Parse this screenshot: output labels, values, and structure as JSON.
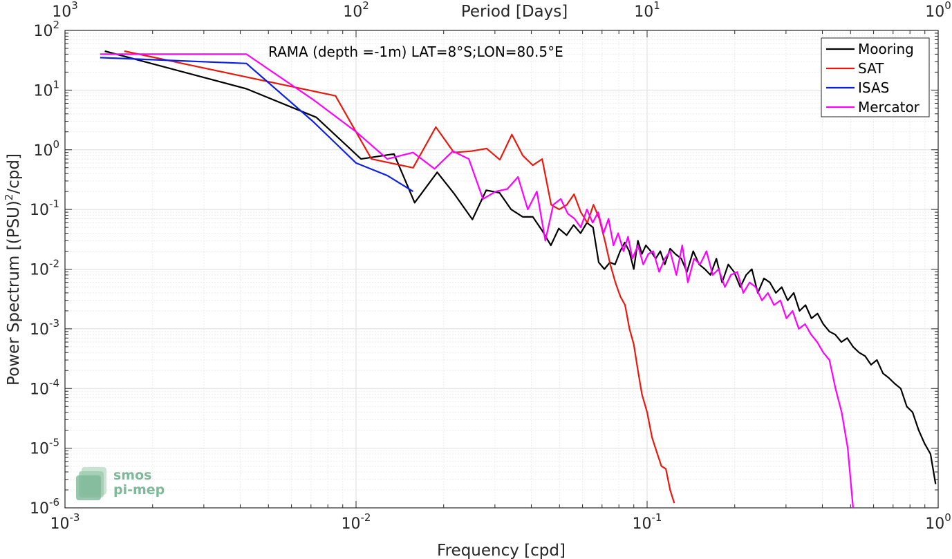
{
  "chart_data": {
    "type": "line",
    "annotation": "RAMA (depth =-1m) LAT=8°S;LON=80.5°E",
    "xlabel": "Frequency [cpd]",
    "ylabel_main": "Power Spectrum [(PSU)",
    "ylabel_sup": "2",
    "ylabel_tail": "/cpd]",
    "top_xlabel": "Period [Days]",
    "xscale": "log",
    "yscale": "log",
    "xlim": [
      0.001,
      1
    ],
    "ylim": [
      1e-06,
      100
    ],
    "grid": true,
    "legend_position": "top-right",
    "x_ticks": [
      {
        "base": "10",
        "exp": "-3"
      },
      {
        "base": "10",
        "exp": "-2"
      },
      {
        "base": "10",
        "exp": "-1"
      },
      {
        "base": "10",
        "exp": "0"
      }
    ],
    "y_ticks": [
      {
        "base": "10",
        "exp": "-6"
      },
      {
        "base": "10",
        "exp": "-5"
      },
      {
        "base": "10",
        "exp": "-4"
      },
      {
        "base": "10",
        "exp": "-3"
      },
      {
        "base": "10",
        "exp": "-2"
      },
      {
        "base": "10",
        "exp": "-1"
      },
      {
        "base": "10",
        "exp": "0"
      },
      {
        "base": "10",
        "exp": "1"
      },
      {
        "base": "10",
        "exp": "2"
      }
    ],
    "top_ticks": [
      {
        "base": "10",
        "exp": "3"
      },
      {
        "base": "10",
        "exp": "2"
      },
      {
        "base": "10",
        "exp": "1"
      },
      {
        "base": "10",
        "exp": "0"
      }
    ],
    "series": [
      {
        "name": "Mooring",
        "color": "#000000",
        "x": [
          0.00137,
          0.0042,
          0.0073,
          0.0104,
          0.0135,
          0.0159,
          0.019,
          0.0218,
          0.0251,
          0.028,
          0.0311,
          0.0341,
          0.0374,
          0.0405,
          0.0435,
          0.0467,
          0.0497,
          0.0529,
          0.0559,
          0.0591,
          0.0621,
          0.0652,
          0.0682,
          0.0713,
          0.0745,
          0.0776,
          0.0808,
          0.0838,
          0.0868,
          0.09,
          0.093,
          0.096,
          0.099,
          0.103,
          0.107,
          0.111,
          0.115,
          0.12,
          0.125,
          0.131,
          0.137,
          0.144,
          0.151,
          0.158,
          0.165,
          0.173,
          0.181,
          0.19,
          0.199,
          0.209,
          0.219,
          0.229,
          0.24,
          0.252,
          0.264,
          0.277,
          0.29,
          0.304,
          0.319,
          0.334,
          0.35,
          0.367,
          0.385,
          0.403,
          0.423,
          0.443,
          0.465,
          0.487,
          0.51,
          0.535,
          0.561,
          0.588,
          0.616,
          0.646,
          0.677,
          0.71,
          0.744,
          0.78,
          0.817,
          0.857,
          0.898,
          0.941,
          0.98
        ],
        "y": [
          45,
          10.5,
          3.5,
          0.7,
          0.85,
          0.13,
          0.42,
          0.18,
          0.068,
          0.21,
          0.19,
          0.1,
          0.075,
          0.075,
          0.045,
          0.025,
          0.048,
          0.037,
          0.055,
          0.04,
          0.06,
          0.05,
          0.013,
          0.01,
          0.013,
          0.012,
          0.02,
          0.028,
          0.02,
          0.01,
          0.03,
          0.018,
          0.025,
          0.02,
          0.015,
          0.02,
          0.012,
          0.022,
          0.018,
          0.015,
          0.009,
          0.02,
          0.012,
          0.01,
          0.008,
          0.015,
          0.006,
          0.012,
          0.009,
          0.005,
          0.008,
          0.01,
          0.004,
          0.007,
          0.006,
          0.004,
          0.005,
          0.003,
          0.004,
          0.002,
          0.0025,
          0.0015,
          0.0018,
          0.0012,
          0.0009,
          0.0008,
          0.0006,
          0.0007,
          0.0005,
          0.0004,
          0.00035,
          0.00025,
          0.0003,
          0.00018,
          0.00015,
          0.00012,
          0.0001,
          5e-05,
          4e-05,
          2e-05,
          1.2e-05,
          8e-06,
          2.5e-06
        ]
      },
      {
        "name": "SAT",
        "color": "#e8190c",
        "x": [
          0.0016,
          0.0085,
          0.0113,
          0.0157,
          0.0188,
          0.0217,
          0.0249,
          0.0281,
          0.0312,
          0.0343,
          0.0374,
          0.0405,
          0.0436,
          0.0468,
          0.0499,
          0.053,
          0.0561,
          0.0592,
          0.0623,
          0.0654,
          0.0685,
          0.0716,
          0.0747,
          0.0778,
          0.0809,
          0.084,
          0.087,
          0.09,
          0.093,
          0.096,
          0.1,
          0.104,
          0.108,
          0.112,
          0.116,
          0.12,
          0.124
        ],
        "y": [
          45,
          8,
          0.7,
          0.5,
          2.4,
          0.9,
          0.95,
          1.05,
          0.68,
          1.8,
          0.8,
          0.55,
          0.7,
          0.12,
          0.1,
          0.12,
          0.18,
          0.09,
          0.06,
          0.12,
          0.07,
          0.03,
          0.012,
          0.006,
          0.0035,
          0.0025,
          0.001,
          0.00055,
          0.0002,
          8e-05,
          4e-05,
          1.5e-05,
          8.5e-06,
          5e-06,
          4.5e-06,
          2e-06,
          1.2e-06
        ]
      },
      {
        "name": "ISAS",
        "color": "#0a1ee6",
        "x": [
          0.00132,
          0.0042,
          0.0071,
          0.01,
          0.0128,
          0.0157
        ],
        "y": [
          35,
          28,
          3,
          0.6,
          0.37,
          0.2
        ]
      },
      {
        "name": "Mercator",
        "color": "#ff00ff",
        "x": [
          0.00132,
          0.0042,
          0.0071,
          0.01,
          0.0128,
          0.0157,
          0.0186,
          0.0215,
          0.0244,
          0.0273,
          0.0302,
          0.0331,
          0.036,
          0.0389,
          0.0418,
          0.0447,
          0.0476,
          0.0505,
          0.0534,
          0.0563,
          0.0592,
          0.0621,
          0.065,
          0.0679,
          0.0708,
          0.0737,
          0.0766,
          0.0795,
          0.083,
          0.086,
          0.089,
          0.093,
          0.097,
          0.101,
          0.105,
          0.11,
          0.115,
          0.12,
          0.126,
          0.132,
          0.138,
          0.145,
          0.152,
          0.16,
          0.168,
          0.176,
          0.185,
          0.194,
          0.204,
          0.214,
          0.225,
          0.236,
          0.248,
          0.26,
          0.273,
          0.287,
          0.301,
          0.316,
          0.332,
          0.349,
          0.366,
          0.384,
          0.403,
          0.423,
          0.444,
          0.466,
          0.489,
          0.51
        ],
        "y": [
          40,
          40,
          7,
          2,
          0.7,
          0.9,
          0.48,
          0.95,
          0.7,
          0.15,
          0.2,
          0.22,
          0.35,
          0.1,
          0.2,
          0.03,
          0.12,
          0.15,
          0.085,
          0.07,
          0.05,
          0.1,
          0.06,
          0.09,
          0.04,
          0.07,
          0.025,
          0.04,
          0.02,
          0.035,
          0.015,
          0.025,
          0.012,
          0.018,
          0.02,
          0.009,
          0.015,
          0.02,
          0.008,
          0.025,
          0.006,
          0.015,
          0.012,
          0.02,
          0.008,
          0.01,
          0.005,
          0.008,
          0.009,
          0.004,
          0.006,
          0.005,
          0.003,
          0.004,
          0.0025,
          0.003,
          0.0015,
          0.002,
          0.001,
          0.0012,
          0.0008,
          0.0006,
          0.0004,
          0.0003,
          0.0001,
          4e-05,
          1e-05,
          1e-06
        ]
      }
    ]
  },
  "logo": {
    "line1": "smos",
    "line2": "pi-mep"
  }
}
